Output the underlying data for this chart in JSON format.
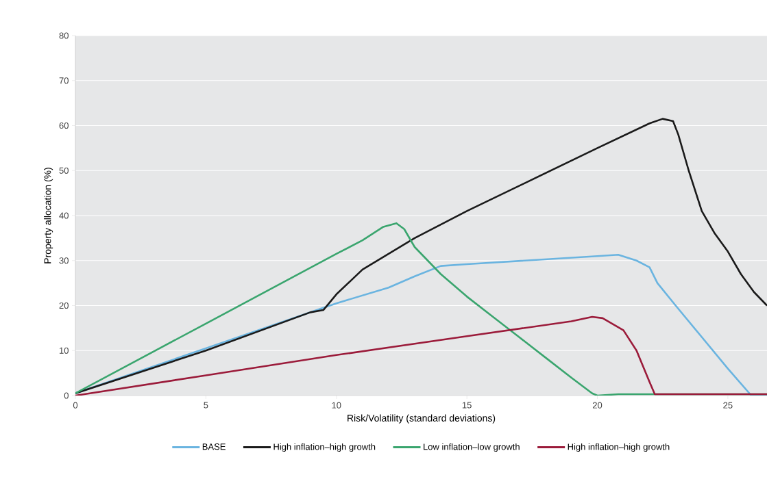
{
  "chart_data": {
    "type": "line",
    "xlabel": "Risk/Volatility (standard deviations)",
    "ylabel": "Property allocation (%)",
    "xlim": [
      0,
      26.5
    ],
    "xticks": [
      0,
      5,
      10,
      15,
      20,
      25
    ],
    "ylim": [
      0,
      80
    ],
    "yticks": [
      0,
      10,
      20,
      30,
      40,
      50,
      60,
      70,
      80
    ],
    "grid": "y",
    "legend": "bottom",
    "series": [
      {
        "name": "BASE",
        "color": "#6ab4e0",
        "x": [
          0,
          5,
          9.5,
          10,
          12,
          13,
          14,
          15,
          20,
          20.8,
          21.5,
          22,
          22.3,
          23,
          24,
          25,
          25.9,
          26.5
        ],
        "values": [
          0.5,
          10.5,
          19.5,
          20.5,
          24,
          26.5,
          28.8,
          29.2,
          31,
          31.3,
          30,
          28.5,
          25,
          20,
          13,
          6,
          0,
          0
        ]
      },
      {
        "name": "High inflation–high growth",
        "color": "#1a1a1a",
        "x": [
          0,
          5,
          9,
          9.5,
          10,
          11,
          12,
          13,
          15,
          20,
          22,
          22.5,
          22.9,
          23.1,
          23.5,
          24,
          24.5,
          25,
          25.5,
          26,
          26.5
        ],
        "values": [
          0.5,
          10,
          18.5,
          19,
          22.5,
          28,
          31.5,
          35,
          41,
          55,
          60.5,
          61.5,
          61,
          58,
          50,
          41,
          36,
          32,
          27,
          23,
          20
        ]
      },
      {
        "name": "Low inflation–low growth",
        "color": "#3aa56e",
        "x": [
          0,
          5,
          10,
          11,
          11.8,
          12.3,
          12.6,
          13,
          14,
          15,
          16,
          17,
          18,
          19,
          19.8,
          20,
          20.8,
          26.5
        ],
        "values": [
          0.5,
          16,
          31.5,
          34.5,
          37.5,
          38.3,
          37,
          33,
          27,
          22,
          17.5,
          13,
          8.5,
          4,
          0.5,
          0,
          0.3,
          0.3
        ]
      },
      {
        "name": "High inflation–high growth",
        "color": "#9b1b3a",
        "x": [
          0,
          5,
          10,
          15,
          19,
          19.8,
          20.2,
          21,
          21.5,
          22,
          22.2,
          26.5
        ],
        "values": [
          0,
          4.5,
          9,
          13.2,
          16.5,
          17.5,
          17.2,
          14.5,
          10,
          3,
          0.3,
          0.3
        ]
      }
    ]
  }
}
